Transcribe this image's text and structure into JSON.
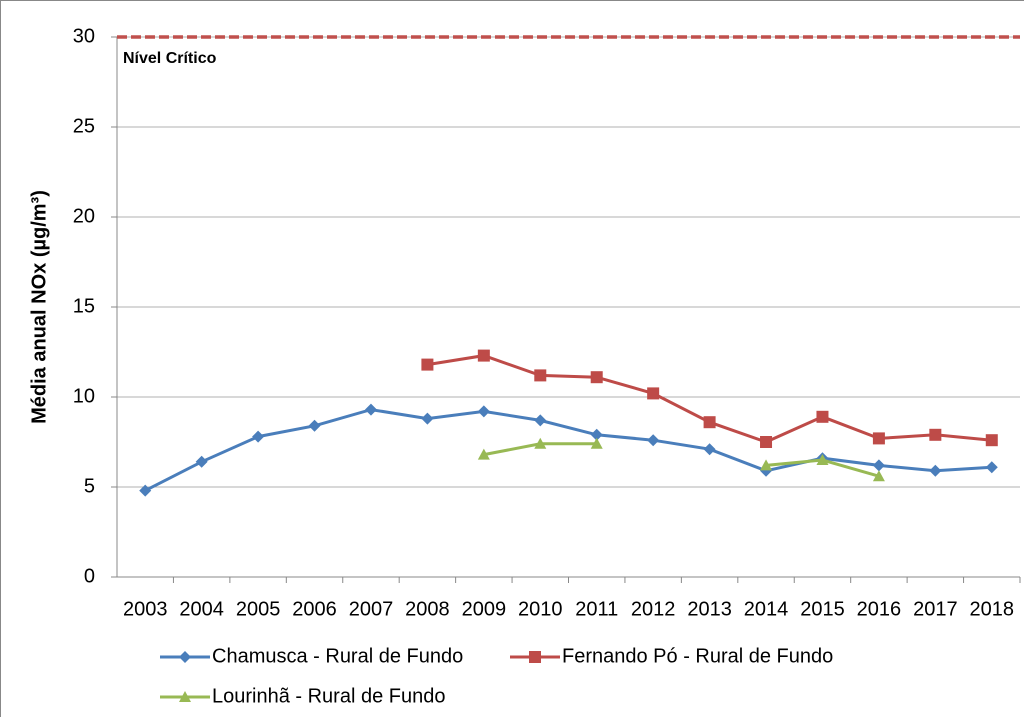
{
  "chart_data": {
    "type": "line",
    "y_axis_label": "Média anual NOx  (µg/m³)",
    "categories": [
      "2003",
      "2004",
      "2005",
      "2006",
      "2007",
      "2008",
      "2009",
      "2010",
      "2011",
      "2012",
      "2013",
      "2014",
      "2015",
      "2016",
      "2017",
      "2018"
    ],
    "series": [
      {
        "name": "Chamusca - Rural de Fundo",
        "color": "#4a7ebb",
        "marker": "diamond",
        "values": [
          4.8,
          6.4,
          7.8,
          8.4,
          9.3,
          8.8,
          9.2,
          8.7,
          7.9,
          7.6,
          7.1,
          5.9,
          6.6,
          6.2,
          5.9,
          6.1
        ]
      },
      {
        "name": "Fernando Pó - Rural de Fundo",
        "color": "#be4b48",
        "marker": "square",
        "values": [
          null,
          null,
          null,
          null,
          null,
          11.8,
          12.3,
          11.2,
          11.1,
          10.2,
          8.6,
          7.5,
          8.9,
          7.7,
          7.9,
          7.6
        ]
      },
      {
        "name": "Lourinhã - Rural de Fundo",
        "color": "#98b954",
        "marker": "triangle",
        "values": [
          null,
          null,
          null,
          null,
          null,
          null,
          6.8,
          7.4,
          7.4,
          null,
          null,
          6.2,
          6.5,
          5.6,
          null,
          null
        ]
      }
    ],
    "reference_line": {
      "value": 30,
      "label": "Nível Crítico",
      "color": "#c0504d"
    },
    "ylim": [
      0,
      30
    ],
    "yticks": [
      0,
      5,
      10,
      15,
      20,
      25,
      30
    ],
    "grid": true
  }
}
